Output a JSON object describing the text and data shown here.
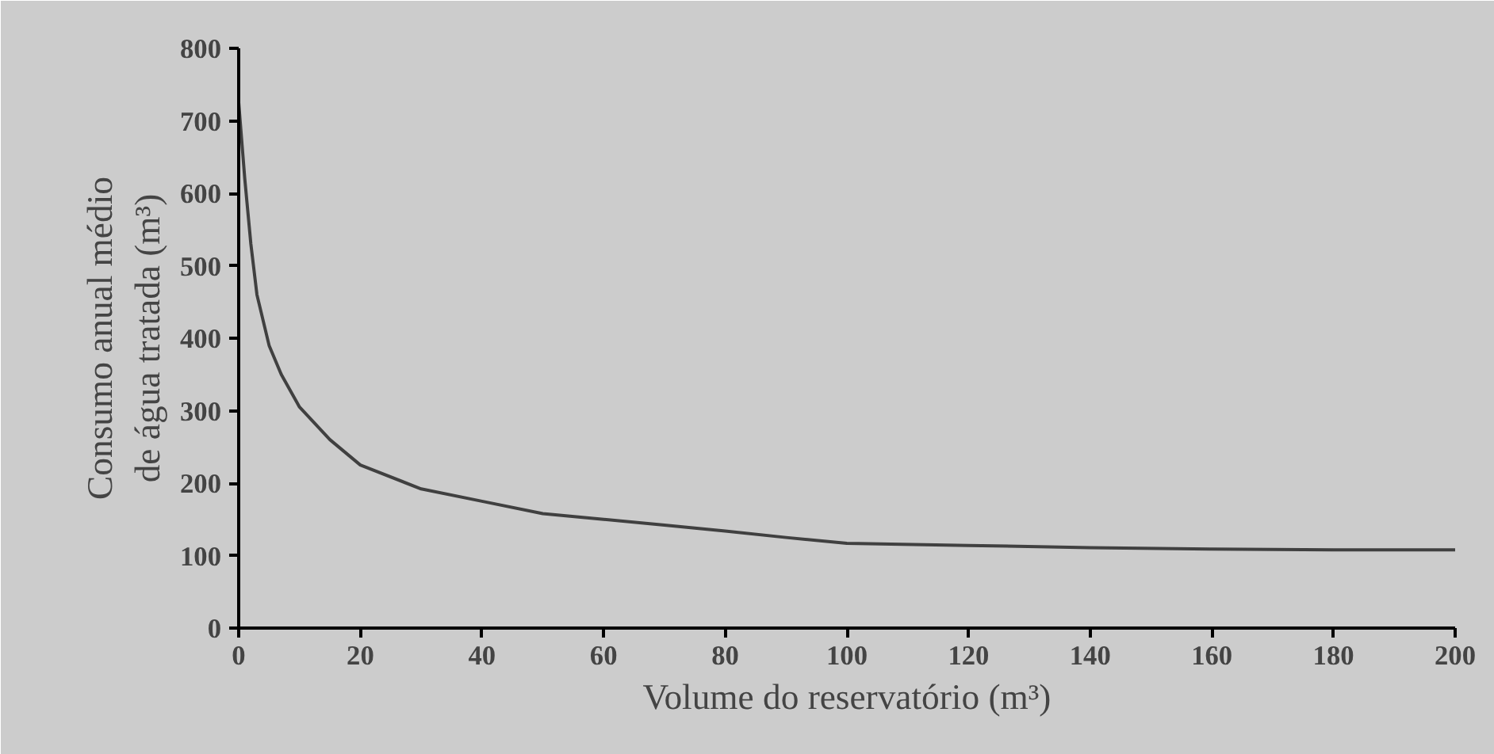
{
  "chart_data": {
    "type": "line",
    "xlabel": "Volume do reservatório (m³)",
    "ylabel": "Consumo anual médio\nde água tratada (m³)",
    "x": [
      0,
      1,
      2,
      3,
      5,
      7,
      10,
      15,
      20,
      30,
      40,
      50,
      60,
      70,
      80,
      90,
      100,
      120,
      140,
      160,
      180,
      200
    ],
    "series": [
      {
        "color": "#404040",
        "values": [
          725,
          620,
          530,
          460,
          390,
          350,
          305,
          260,
          225,
          192,
          175,
          158,
          150,
          142,
          134,
          125,
          117,
          114,
          111,
          109,
          108,
          108
        ]
      }
    ],
    "xlim": [
      0,
      200
    ],
    "xticks": [
      0,
      20,
      40,
      60,
      80,
      100,
      120,
      140,
      160,
      180,
      200
    ],
    "ylim": [
      0,
      800
    ],
    "yticks": [
      0,
      100,
      200,
      300,
      400,
      500,
      600,
      700,
      800
    ],
    "grid": false,
    "marker": "none",
    "line_style": "solid"
  }
}
